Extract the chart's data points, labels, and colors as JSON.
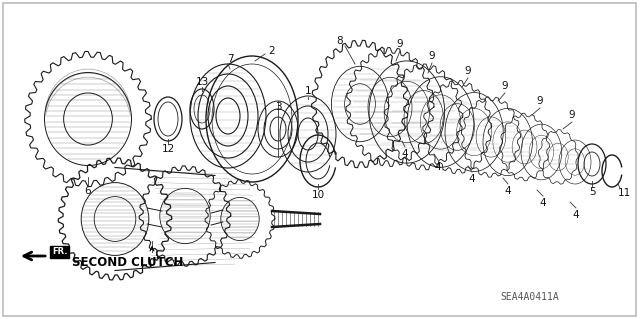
{
  "bg_color": "#ffffff",
  "line_color": "#1a1a1a",
  "label_color": "#111111",
  "fig_width": 6.4,
  "fig_height": 3.19,
  "dpi": 100,
  "xlim": [
    0,
    640
  ],
  "ylim": [
    0,
    319
  ],
  "diagram_code": "SEA4A0411A",
  "second_clutch_text": "SECOND CLUTCH"
}
